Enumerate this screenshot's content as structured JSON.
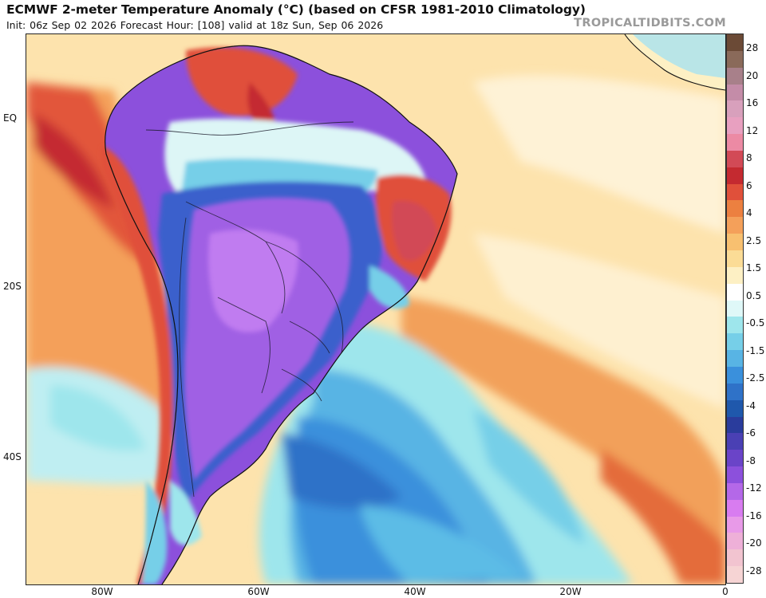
{
  "header": {
    "title": "ECMWF 2-meter Temperature Anomaly (°C) (based on CFSR 1981-2010 Climatology)",
    "subtitle": "Init: 06z Sep 02 2026   Forecast Hour: [108]   valid at 18z Sun, Sep 06 2026",
    "watermark": "TROPICALTIDBITS.COM"
  },
  "axes": {
    "lat_labels": [
      "EQ",
      "20S",
      "40S"
    ],
    "lon_labels": [
      "80W",
      "60W",
      "40W",
      "20W",
      "0"
    ]
  },
  "legend": {
    "labels": [
      "28",
      "20",
      "16",
      "12",
      "8",
      "6",
      "4",
      "2.5",
      "1.5",
      "0.5",
      "-0.5",
      "-1.5",
      "-2.5",
      "-4",
      "-6",
      "-8",
      "-12",
      "-16",
      "-20",
      "-28"
    ],
    "colors": [
      "#6b4a36",
      "#8a6a5a",
      "#a8808a",
      "#c48ca8",
      "#d8a0bc",
      "#e8a0c0",
      "#ec8aa4",
      "#d24a56",
      "#c42a30",
      "#e0503a",
      "#ec8040",
      "#f4a05a",
      "#f8c070",
      "#fbdc96",
      "#fdf0c4",
      "#ffffff",
      "#dff8f8",
      "#9ee6ec",
      "#76cfe8",
      "#58b4e4",
      "#3a90dc",
      "#2f72c8",
      "#1f58ac",
      "#2a3c9c",
      "#4a40b4",
      "#6a44c8",
      "#8c50dc",
      "#b468e8",
      "#d87cf0",
      "#e89ae8",
      "#eeb0d8",
      "#f2c4d0",
      "#f6d4d4"
    ]
  }
}
